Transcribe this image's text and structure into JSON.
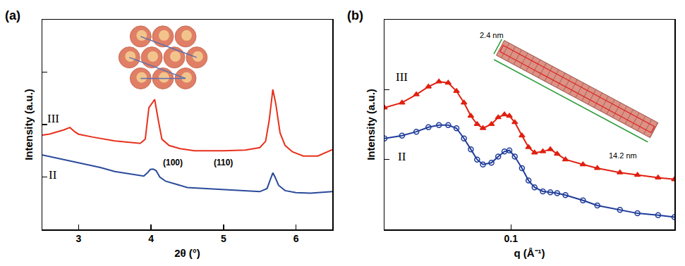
{
  "chart_data": [
    {
      "type": "line",
      "title": "(a)",
      "x_label": "2θ (°)",
      "y_label": "Intensity (a.u.)",
      "xlim": [
        2.5,
        6.5
      ],
      "xticks": [
        3,
        4,
        5,
        6
      ],
      "ylim": [
        0,
        100
      ],
      "yticks": [
        25,
        50,
        75
      ],
      "tick_labels": "x",
      "grid": false,
      "series": [
        {
          "name": "III",
          "color": "#e8301c",
          "line_style": "solid",
          "x": [
            2.5,
            2.6,
            2.7,
            2.8,
            2.88,
            2.95,
            3.0,
            3.2,
            3.5,
            3.7,
            3.85,
            3.92,
            3.97,
            4.01,
            4.05,
            4.1,
            4.15,
            4.25,
            4.4,
            4.6,
            5.0,
            5.3,
            5.5,
            5.58,
            5.63,
            5.68,
            5.72,
            5.78,
            5.85,
            5.95,
            6.1,
            6.3,
            6.5
          ],
          "values": [
            45,
            45.5,
            46.5,
            47.5,
            48.6,
            46.5,
            45.4,
            44,
            42.2,
            41.5,
            41,
            43,
            58,
            60,
            62,
            52,
            43,
            40,
            38.5,
            37.5,
            37.5,
            37.8,
            39,
            42,
            52,
            66.7,
            60,
            46,
            40,
            37,
            35,
            35,
            38
          ]
        },
        {
          "name": "II",
          "color": "#2a4a9a",
          "line_style": "solid",
          "x": [
            2.5,
            2.8,
            3.0,
            3.3,
            3.5,
            3.7,
            3.9,
            3.95,
            3.99,
            4.03,
            4.07,
            4.12,
            4.2,
            4.5,
            5.0,
            5.5,
            5.6,
            5.65,
            5.68,
            5.71,
            5.76,
            5.85,
            6.0,
            6.2,
            6.5
          ],
          "values": [
            35.5,
            33.3,
            31.7,
            29.5,
            27.6,
            26.6,
            25.4,
            27,
            28.6,
            28.8,
            28,
            25,
            23,
            20,
            19,
            18,
            19.5,
            24,
            27,
            25,
            21,
            18.5,
            17.5,
            17.3,
            18
          ]
        }
      ],
      "annotations": [
        {
          "text": "III",
          "x": 2.65,
          "y": 53
        },
        {
          "text": "II",
          "x": 2.65,
          "y": 26
        }
      ],
      "inset": {
        "labels": [
          "(100)",
          "(110)"
        ]
      }
    },
    {
      "type": "scatter",
      "title": "(b)",
      "x_label": "q (Å⁻¹)",
      "y_label": "Intensity (a.u.)",
      "log": true,
      "xlim": [
        0.02,
        0.8
      ],
      "xticks": [
        0.1
      ],
      "ylim": [
        1,
        1000
      ],
      "yticks": [
        1,
        10,
        100,
        1000
      ],
      "tick_labels": "x",
      "grid": false,
      "series": [
        {
          "name": "III",
          "color": "#e02010",
          "marker": "triangle-up",
          "line_style": "solid",
          "x": [
            0.02,
            0.025,
            0.03,
            0.035,
            0.04,
            0.045,
            0.05,
            0.055,
            0.06,
            0.065,
            0.07,
            0.078,
            0.085,
            0.092,
            0.098,
            0.105,
            0.115,
            0.125,
            0.135,
            0.15,
            0.165,
            0.18,
            0.2,
            0.25,
            0.3,
            0.4,
            0.5,
            0.65,
            0.8
          ],
          "values": [
            55,
            65,
            85,
            110,
            130,
            125,
            95,
            65,
            42,
            32,
            28,
            32,
            40,
            44,
            42,
            34,
            22,
            15,
            12.5,
            13,
            14,
            12,
            10,
            8.5,
            7.5,
            6.5,
            6,
            5.5,
            5.2
          ]
        },
        {
          "name": "II",
          "color": "#1f3c99",
          "marker": "circle-open",
          "line_style": "solid",
          "x": [
            0.02,
            0.025,
            0.03,
            0.035,
            0.04,
            0.045,
            0.05,
            0.055,
            0.06,
            0.065,
            0.07,
            0.078,
            0.085,
            0.092,
            0.098,
            0.105,
            0.115,
            0.125,
            0.135,
            0.15,
            0.165,
            0.18,
            0.2,
            0.25,
            0.3,
            0.4,
            0.5,
            0.65,
            0.8
          ],
          "values": [
            20,
            22,
            25,
            29,
            31,
            31,
            28,
            20,
            14,
            10,
            8.5,
            9,
            11,
            13,
            13.5,
            11,
            7.5,
            5,
            4,
            3.5,
            3.4,
            3.3,
            3.1,
            2.6,
            2.2,
            1.9,
            1.7,
            1.6,
            1.5
          ]
        }
      ],
      "annotations": [
        {
          "text": "III",
          "x": 0.025,
          "y": 150
        },
        {
          "text": "II",
          "x": 0.025,
          "y": 11
        }
      ],
      "inset": {
        "labels": [
          "2.4 nm",
          "14.2 nm"
        ]
      }
    }
  ]
}
